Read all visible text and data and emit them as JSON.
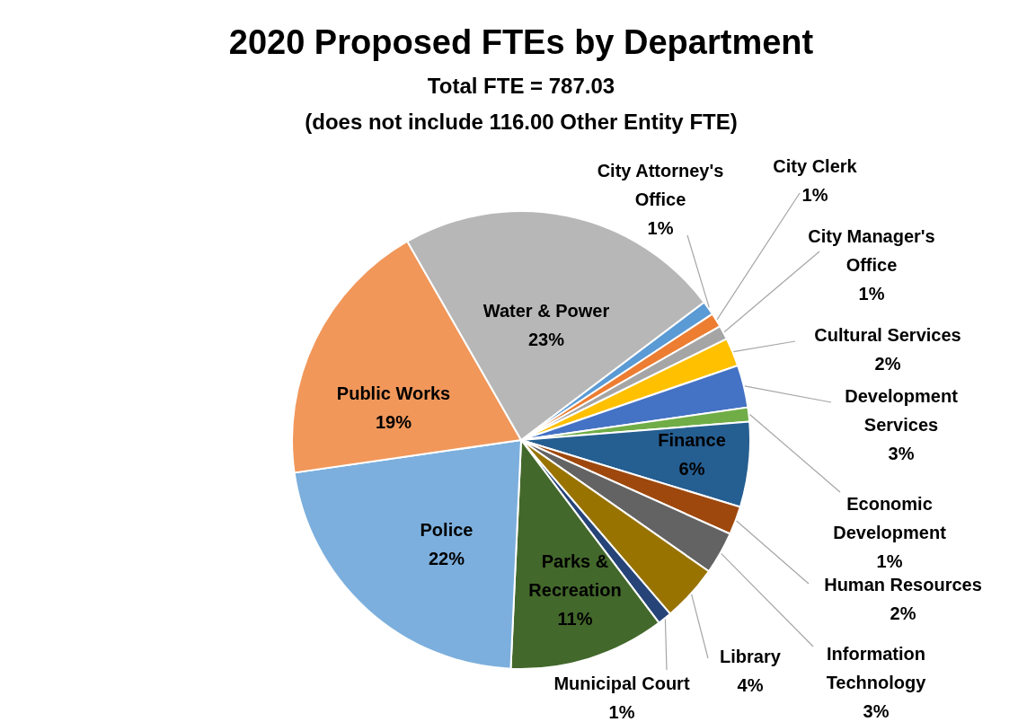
{
  "chart_data": {
    "type": "pie",
    "title": "2020 Proposed FTEs by Department",
    "subtitle": "Total FTE = 787.03",
    "annotations": [
      "(does not include 116.00 Other Entity FTE)"
    ],
    "categories": [
      "City Attorney's Office",
      "City Clerk",
      "City Manager's Office",
      "Cultural Services",
      "Development Services",
      "Economic Development",
      "Finance",
      "Human Resources",
      "Information Technology",
      "Library",
      "Municipal Court",
      "Parks & Recreation",
      "Police",
      "Public Works",
      "Water & Power"
    ],
    "values": [
      1,
      1,
      1,
      2,
      3,
      1,
      6,
      2,
      3,
      4,
      1,
      11,
      22,
      19,
      23
    ],
    "value_labels": [
      "1%",
      "1%",
      "1%",
      "2%",
      "3%",
      "1%",
      "6%",
      "2%",
      "3%",
      "4%",
      "1%",
      "11%",
      "22%",
      "19%",
      "23%"
    ],
    "colors": [
      "#5b9bd5",
      "#ed7d31",
      "#a5a5a5",
      "#ffc000",
      "#4472c4",
      "#70ad47",
      "#255e91",
      "#9e480e",
      "#636363",
      "#997300",
      "#264478",
      "#43682b",
      "#7cafdd",
      "#f1975a",
      "#b7b7b7"
    ]
  }
}
